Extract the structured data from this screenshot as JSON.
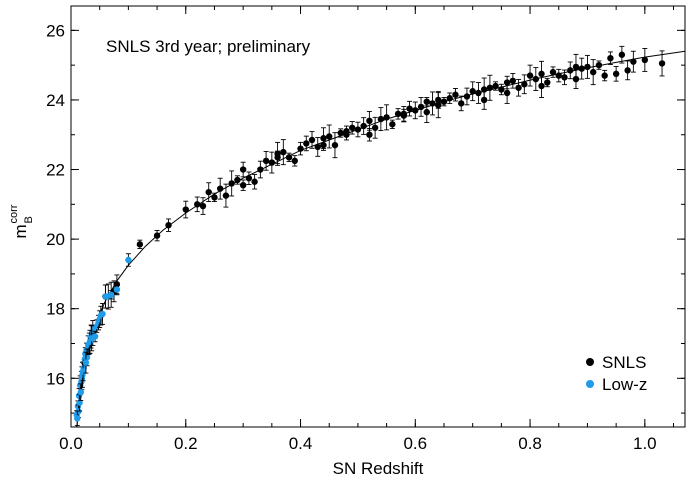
{
  "chart_data": {
    "type": "scatter",
    "title": "",
    "annotation": "SNLS 3rd year; preliminary",
    "xlabel": "SN Redshift",
    "ylabel": {
      "main": "m",
      "superscript": "corr",
      "subscript": "B"
    },
    "xlim": [
      0.0,
      1.07
    ],
    "ylim": [
      14.6,
      26.7
    ],
    "xticks": [
      0.0,
      0.2,
      0.4,
      0.6,
      0.8,
      1.0
    ],
    "xtick_labels": [
      "0.0",
      "0.2",
      "0.4",
      "0.6",
      "0.8",
      "1.0"
    ],
    "yticks": [
      16,
      18,
      20,
      22,
      24,
      26
    ],
    "ytick_labels": [
      "16",
      "18",
      "20",
      "22",
      "24",
      "26"
    ],
    "grid": false,
    "legend_position": "bottom-right",
    "curve_points": [
      [
        0.01,
        14.55
      ],
      [
        0.015,
        15.35
      ],
      [
        0.02,
        15.95
      ],
      [
        0.03,
        16.8
      ],
      [
        0.04,
        17.4
      ],
      [
        0.05,
        17.85
      ],
      [
        0.06,
        18.22
      ],
      [
        0.08,
        18.8
      ],
      [
        0.1,
        19.25
      ],
      [
        0.13,
        19.8
      ],
      [
        0.16,
        20.25
      ],
      [
        0.2,
        20.75
      ],
      [
        0.25,
        21.3
      ],
      [
        0.3,
        21.75
      ],
      [
        0.35,
        22.15
      ],
      [
        0.4,
        22.55
      ],
      [
        0.45,
        22.85
      ],
      [
        0.5,
        23.15
      ],
      [
        0.55,
        23.45
      ],
      [
        0.6,
        23.7
      ],
      [
        0.65,
        23.95
      ],
      [
        0.7,
        24.17
      ],
      [
        0.75,
        24.37
      ],
      [
        0.8,
        24.57
      ],
      [
        0.85,
        24.75
      ],
      [
        0.9,
        24.92
      ],
      [
        0.95,
        25.08
      ],
      [
        1.0,
        25.23
      ],
      [
        1.07,
        25.4
      ]
    ],
    "series": [
      {
        "name": "SNLS",
        "color": "#000000",
        "points": [
          [
            0.12,
            19.85
          ],
          [
            0.15,
            20.1
          ],
          [
            0.17,
            20.4
          ],
          [
            0.22,
            21.0
          ],
          [
            0.23,
            20.95
          ],
          [
            0.24,
            21.35
          ],
          [
            0.26,
            21.45
          ],
          [
            0.27,
            21.25
          ],
          [
            0.28,
            21.6
          ],
          [
            0.29,
            21.7
          ],
          [
            0.3,
            21.55
          ],
          [
            0.31,
            21.75
          ],
          [
            0.32,
            21.65
          ],
          [
            0.33,
            22.0
          ],
          [
            0.34,
            22.25
          ],
          [
            0.35,
            22.2
          ],
          [
            0.36,
            22.45
          ],
          [
            0.37,
            22.5
          ],
          [
            0.38,
            22.35
          ],
          [
            0.39,
            22.25
          ],
          [
            0.4,
            22.6
          ],
          [
            0.41,
            22.75
          ],
          [
            0.42,
            22.85
          ],
          [
            0.43,
            22.65
          ],
          [
            0.44,
            22.9
          ],
          [
            0.45,
            22.95
          ],
          [
            0.46,
            22.7
          ],
          [
            0.47,
            23.05
          ],
          [
            0.48,
            23.0
          ],
          [
            0.49,
            23.2
          ],
          [
            0.5,
            23.15
          ],
          [
            0.51,
            23.25
          ],
          [
            0.52,
            23.4
          ],
          [
            0.53,
            23.2
          ],
          [
            0.54,
            23.45
          ],
          [
            0.55,
            23.5
          ],
          [
            0.56,
            23.3
          ],
          [
            0.57,
            23.6
          ],
          [
            0.58,
            23.55
          ],
          [
            0.59,
            23.75
          ],
          [
            0.6,
            23.7
          ],
          [
            0.61,
            23.8
          ],
          [
            0.62,
            23.65
          ],
          [
            0.63,
            23.9
          ],
          [
            0.64,
            23.85
          ],
          [
            0.65,
            23.95
          ],
          [
            0.66,
            24.05
          ],
          [
            0.67,
            24.15
          ],
          [
            0.68,
            23.9
          ],
          [
            0.69,
            24.1
          ],
          [
            0.7,
            24.25
          ],
          [
            0.71,
            24.2
          ],
          [
            0.72,
            24.3
          ],
          [
            0.73,
            24.35
          ],
          [
            0.74,
            24.4
          ],
          [
            0.75,
            24.3
          ],
          [
            0.76,
            24.5
          ],
          [
            0.77,
            24.55
          ],
          [
            0.78,
            24.35
          ],
          [
            0.79,
            24.45
          ],
          [
            0.8,
            24.7
          ],
          [
            0.81,
            24.6
          ],
          [
            0.82,
            24.75
          ],
          [
            0.83,
            24.5
          ],
          [
            0.84,
            24.8
          ],
          [
            0.85,
            24.7
          ],
          [
            0.86,
            24.65
          ],
          [
            0.87,
            24.85
          ],
          [
            0.88,
            24.6
          ],
          [
            0.89,
            24.9
          ],
          [
            0.9,
            24.95
          ],
          [
            0.91,
            24.8
          ],
          [
            0.92,
            25.0
          ],
          [
            0.93,
            24.7
          ],
          [
            0.94,
            25.2
          ],
          [
            0.95,
            24.75
          ],
          [
            0.96,
            25.3
          ],
          [
            0.97,
            24.85
          ],
          [
            0.98,
            25.1
          ],
          [
            1.0,
            25.15
          ],
          [
            1.03,
            25.05
          ],
          [
            0.25,
            21.2
          ],
          [
            0.44,
            22.7
          ],
          [
            0.52,
            23.0
          ],
          [
            0.58,
            23.6
          ],
          [
            0.64,
            24.0
          ],
          [
            0.72,
            24.0
          ],
          [
            0.76,
            24.2
          ],
          [
            0.82,
            24.4
          ],
          [
            0.88,
            24.95
          ],
          [
            0.62,
            23.95
          ],
          [
            0.48,
            23.1
          ],
          [
            0.36,
            22.35
          ],
          [
            0.3,
            22.0
          ],
          [
            0.2,
            20.85
          ],
          [
            0.08,
            18.7
          ],
          [
            0.075,
            18.5
          ],
          [
            0.06,
            18.35
          ],
          [
            0.07,
            18.4
          ]
        ]
      },
      {
        "name": "Low-z",
        "color": "#1e9be9",
        "points": [
          [
            0.01,
            14.95
          ],
          [
            0.012,
            15.2
          ],
          [
            0.013,
            15.05
          ],
          [
            0.014,
            15.5
          ],
          [
            0.015,
            15.3
          ],
          [
            0.016,
            15.8
          ],
          [
            0.018,
            15.9
          ],
          [
            0.019,
            16.0
          ],
          [
            0.02,
            16.1
          ],
          [
            0.022,
            16.3
          ],
          [
            0.024,
            16.55
          ],
          [
            0.025,
            16.7
          ],
          [
            0.027,
            16.8
          ],
          [
            0.028,
            16.6
          ],
          [
            0.03,
            16.95
          ],
          [
            0.032,
            17.0
          ],
          [
            0.035,
            17.2
          ],
          [
            0.038,
            17.3
          ],
          [
            0.04,
            17.4
          ],
          [
            0.042,
            17.2
          ],
          [
            0.045,
            17.5
          ],
          [
            0.048,
            17.6
          ],
          [
            0.05,
            17.7
          ],
          [
            0.052,
            17.8
          ],
          [
            0.055,
            17.85
          ],
          [
            0.06,
            18.35
          ],
          [
            0.065,
            18.35
          ],
          [
            0.07,
            18.4
          ],
          [
            0.08,
            18.55
          ],
          [
            0.1,
            19.4
          ],
          [
            0.011,
            14.85
          ],
          [
            0.017,
            15.6
          ],
          [
            0.021,
            16.2
          ],
          [
            0.026,
            16.45
          ],
          [
            0.033,
            17.05
          ],
          [
            0.036,
            17.15
          ]
        ]
      }
    ]
  }
}
